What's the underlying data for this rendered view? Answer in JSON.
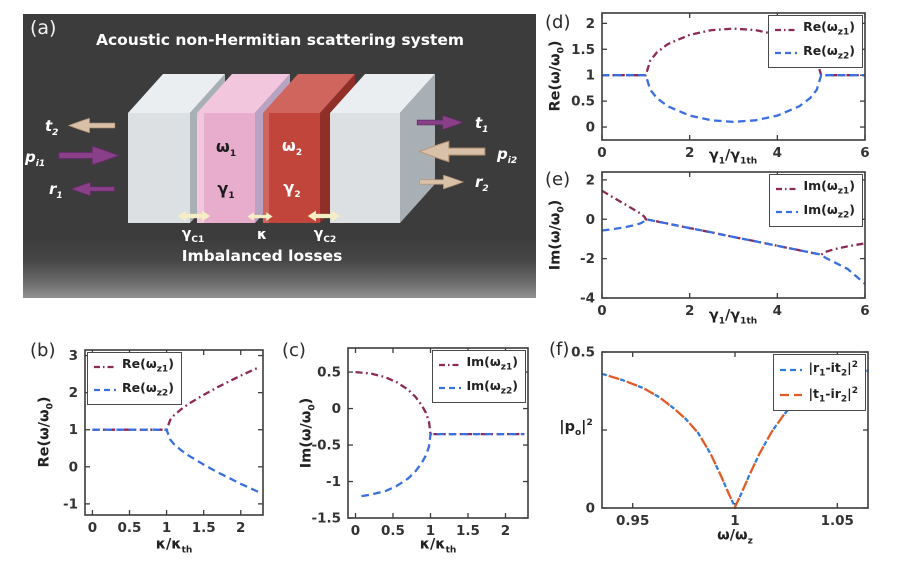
{
  "figure": {
    "panel_labels": {
      "a": "(a)",
      "b": "(b)",
      "c": "(c)",
      "d": "(d)",
      "e": "(e)",
      "f": "(f)"
    }
  },
  "panel_a": {
    "title": "Acoustic non-Hermitian scattering system",
    "bottom_text": "Imbalanced losses",
    "labels": {
      "t2": "t_{2}",
      "pi1": "p_{i1}",
      "r1": "r_{1}",
      "t1": "t_{1}",
      "pi2": "p_{i2}",
      "r2": "r_{2}",
      "omega1": "ω_{1}",
      "gamma1": "γ_{1}",
      "omega2": "ω_{2}",
      "gamma2": "γ_{2}",
      "gc1": "γ_{C1}",
      "kappa": "κ",
      "gc2": "γ_{C2}"
    },
    "colors": {
      "background": "#3b3b3b",
      "gray_front": "#dce0e3",
      "gray_top": "#ebeef0",
      "gray_side": "#a9b0b5",
      "pink_front": "#e8accd",
      "pink_top": "#f2c7de",
      "pink_side": "#b9a3c2",
      "red_front": "#c2453c",
      "red_top": "#cf655c",
      "red_side": "#8f2f28",
      "arrow_purple": "#8a4089",
      "arrow_purple_dark": "#5f2b62",
      "arrow_tan": "#d9c0a8",
      "arrow_tan_dark": "#b89877",
      "arrow_yellow": "#f5eec5"
    }
  },
  "chart_data": [
    {
      "panel": "b",
      "type": "line",
      "xlabel": "κ/κ_{th}",
      "ylabel": "Re(ω/ω_{0})",
      "xlim": [
        -0.1,
        2.3
      ],
      "ylim": [
        -1.3,
        3.15
      ],
      "xticks": [
        0,
        0.5,
        1,
        1.5,
        2
      ],
      "xticklabels": [
        "0",
        "0.5",
        "1",
        "1.5",
        "2"
      ],
      "yticks": [
        -1,
        0,
        1,
        2,
        3
      ],
      "yticklabels": [
        "-1",
        "0",
        "1",
        "2",
        "3"
      ],
      "grid": false,
      "legend": {
        "pos": "top-left"
      },
      "series": [
        {
          "name": "Re(ω_{z1})",
          "color": "#8c2a56",
          "dash": "dashdot",
          "points": [
            [
              0,
              1
            ],
            [
              0.3,
              1
            ],
            [
              0.6,
              1
            ],
            [
              0.9,
              1
            ],
            [
              1,
              1
            ],
            [
              1.05,
              1.27
            ],
            [
              1.1,
              1.39
            ],
            [
              1.2,
              1.56
            ],
            [
              1.3,
              1.7
            ],
            [
              1.4,
              1.82
            ],
            [
              1.5,
              1.94
            ],
            [
              1.6,
              2.05
            ],
            [
              1.7,
              2.16
            ],
            [
              1.8,
              2.26
            ],
            [
              1.9,
              2.36
            ],
            [
              2.0,
              2.46
            ],
            [
              2.1,
              2.55
            ],
            [
              2.25,
              2.69
            ]
          ]
        },
        {
          "name": "Re(ω_{z2})",
          "color": "#3a6fe0",
          "dash": "dash",
          "points": [
            [
              0,
              1
            ],
            [
              0.3,
              1
            ],
            [
              0.6,
              1
            ],
            [
              0.9,
              1
            ],
            [
              1,
              1
            ],
            [
              1.05,
              0.73
            ],
            [
              1.1,
              0.61
            ],
            [
              1.2,
              0.44
            ],
            [
              1.3,
              0.3
            ],
            [
              1.4,
              0.18
            ],
            [
              1.5,
              0.06
            ],
            [
              1.6,
              -0.05
            ],
            [
              1.7,
              -0.16
            ],
            [
              1.8,
              -0.26
            ],
            [
              1.9,
              -0.36
            ],
            [
              2.0,
              -0.46
            ],
            [
              2.1,
              -0.55
            ],
            [
              2.25,
              -0.69
            ]
          ]
        }
      ]
    },
    {
      "panel": "c",
      "type": "line",
      "xlabel": "κ/κ_{th}",
      "ylabel": "Im(ω/ω_{0})",
      "xlim": [
        -0.1,
        2.3
      ],
      "ylim": [
        -1.5,
        0.83
      ],
      "xticks": [
        0,
        0.5,
        1,
        1.5,
        2
      ],
      "xticklabels": [
        "0",
        "0.5",
        "1",
        "1.5",
        "2"
      ],
      "yticks": [
        -1.5,
        -1,
        -0.5,
        0,
        0.5
      ],
      "yticklabels": [
        "-1.5",
        "-1",
        "-0.5",
        "0",
        "0.5"
      ],
      "grid": false,
      "legend": {
        "pos": "top-right"
      },
      "series": [
        {
          "name": "Im(ω_{z1})",
          "color": "#8c2a56",
          "dash": "dashdot",
          "points": [
            [
              0,
              0.5
            ],
            [
              0.2,
              0.48
            ],
            [
              0.4,
              0.43
            ],
            [
              0.55,
              0.36
            ],
            [
              0.7,
              0.26
            ],
            [
              0.8,
              0.16
            ],
            [
              0.88,
              0.05
            ],
            [
              0.94,
              -0.06
            ],
            [
              0.98,
              -0.18
            ],
            [
              1,
              -0.35
            ],
            [
              1.2,
              -0.35
            ],
            [
              1.6,
              -0.35
            ],
            [
              2,
              -0.35
            ],
            [
              2.25,
              -0.35
            ]
          ]
        },
        {
          "name": "Im(ω_{z2})",
          "color": "#3a6fe0",
          "dash": "dash",
          "points": [
            [
              0.08,
              -1.2
            ],
            [
              0.2,
              -1.18
            ],
            [
              0.4,
              -1.13
            ],
            [
              0.55,
              -1.06
            ],
            [
              0.7,
              -0.96
            ],
            [
              0.8,
              -0.86
            ],
            [
              0.88,
              -0.75
            ],
            [
              0.94,
              -0.64
            ],
            [
              0.98,
              -0.52
            ],
            [
              1,
              -0.35
            ],
            [
              1.2,
              -0.35
            ],
            [
              1.6,
              -0.35
            ],
            [
              2,
              -0.35
            ],
            [
              2.25,
              -0.35
            ]
          ]
        }
      ]
    },
    {
      "panel": "d",
      "type": "line",
      "xlabel": "γ_{1}/γ_{1th}",
      "ylabel": "Re(ω/ω_{0})",
      "xlim": [
        0,
        6
      ],
      "ylim": [
        -0.25,
        2.2
      ],
      "xticks": [
        0,
        2,
        4,
        6
      ],
      "xticklabels": [
        "0",
        "2",
        "4",
        "6"
      ],
      "yticks": [
        0,
        0.5,
        1,
        1.5,
        2
      ],
      "yticklabels": [
        "0",
        "0.5",
        "1",
        "1.5",
        "2"
      ],
      "grid": false,
      "legend": {
        "pos": "top-right"
      },
      "series": [
        {
          "name": "Re(ω_{z1})",
          "color": "#8c2a56",
          "dash": "dashdot",
          "points": [
            [
              0,
              1
            ],
            [
              0.5,
              1
            ],
            [
              1,
              1
            ],
            [
              1.1,
              1.28
            ],
            [
              1.25,
              1.44
            ],
            [
              1.5,
              1.6
            ],
            [
              2,
              1.78
            ],
            [
              2.5,
              1.87
            ],
            [
              3,
              1.9
            ],
            [
              3.5,
              1.87
            ],
            [
              4,
              1.78
            ],
            [
              4.5,
              1.6
            ],
            [
              4.75,
              1.44
            ],
            [
              4.9,
              1.28
            ],
            [
              5,
              1
            ],
            [
              5.5,
              1
            ],
            [
              6,
              1
            ]
          ]
        },
        {
          "name": "Re(ω_{z2})",
          "color": "#3a6fe0",
          "dash": "dash",
          "points": [
            [
              0,
              1
            ],
            [
              0.5,
              1
            ],
            [
              1,
              1
            ],
            [
              1.1,
              0.72
            ],
            [
              1.25,
              0.56
            ],
            [
              1.5,
              0.4
            ],
            [
              2,
              0.22
            ],
            [
              2.5,
              0.13
            ],
            [
              3,
              0.1
            ],
            [
              3.5,
              0.13
            ],
            [
              4,
              0.22
            ],
            [
              4.5,
              0.4
            ],
            [
              4.75,
              0.56
            ],
            [
              4.9,
              0.72
            ],
            [
              5,
              1
            ],
            [
              5.5,
              1
            ],
            [
              6,
              1
            ]
          ]
        }
      ]
    },
    {
      "panel": "e",
      "type": "line",
      "xlabel": "γ_{1}/γ_{1th}",
      "ylabel": "Im(ω/ω_{0})",
      "xlim": [
        0,
        6
      ],
      "ylim": [
        -4,
        2.4
      ],
      "xticks": [
        0,
        2,
        4,
        6
      ],
      "xticklabels": [
        "0",
        "2",
        "4",
        "6"
      ],
      "yticks": [
        -4,
        -2,
        0,
        2
      ],
      "yticklabels": [
        "-4",
        "-2",
        "0",
        "2"
      ],
      "grid": false,
      "legend": {
        "pos": "top-right"
      },
      "series": [
        {
          "name": "Im(ω_{z1})",
          "color": "#8c2a56",
          "dash": "dashdot",
          "points": [
            [
              0,
              1.45
            ],
            [
              0.2,
              1.18
            ],
            [
              0.4,
              0.92
            ],
            [
              0.6,
              0.66
            ],
            [
              0.8,
              0.4
            ],
            [
              0.9,
              0.26
            ],
            [
              0.97,
              0.12
            ],
            [
              1,
              0
            ],
            [
              1.5,
              -0.22
            ],
            [
              2,
              -0.45
            ],
            [
              2.5,
              -0.67
            ],
            [
              3,
              -0.9
            ],
            [
              3.5,
              -1.12
            ],
            [
              4,
              -1.35
            ],
            [
              4.5,
              -1.57
            ],
            [
              5,
              -1.8
            ],
            [
              5.1,
              -1.66
            ],
            [
              5.3,
              -1.52
            ],
            [
              5.6,
              -1.38
            ],
            [
              6,
              -1.22
            ]
          ]
        },
        {
          "name": "Im(ω_{z2})",
          "color": "#3a6fe0",
          "dash": "dash",
          "points": [
            [
              0,
              -0.57
            ],
            [
              0.2,
              -0.52
            ],
            [
              0.4,
              -0.45
            ],
            [
              0.6,
              -0.37
            ],
            [
              0.8,
              -0.27
            ],
            [
              0.9,
              -0.19
            ],
            [
              0.97,
              -0.09
            ],
            [
              1,
              0
            ],
            [
              1.5,
              -0.22
            ],
            [
              2,
              -0.45
            ],
            [
              2.5,
              -0.67
            ],
            [
              3,
              -0.9
            ],
            [
              3.5,
              -1.12
            ],
            [
              4,
              -1.35
            ],
            [
              4.5,
              -1.57
            ],
            [
              5,
              -1.8
            ],
            [
              5.1,
              -1.96
            ],
            [
              5.3,
              -2.18
            ],
            [
              5.6,
              -2.52
            ],
            [
              6,
              -3.28
            ]
          ]
        }
      ]
    },
    {
      "panel": "f",
      "type": "line",
      "xlabel": "ω/ω_{z}",
      "ylabel": "|p_{o}|^{2}",
      "xlim": [
        0.935,
        1.065
      ],
      "ylim": [
        0,
        0.5
      ],
      "xticks": [
        0.95,
        1,
        1.05
      ],
      "xticklabels": [
        "0.95",
        "1",
        "1.05"
      ],
      "yticks": [
        0,
        0.25,
        0.5
      ],
      "yticklabels": [
        "0",
        "",
        "0.5"
      ],
      "grid": false,
      "legend": {
        "pos": "top-right"
      },
      "series": [
        {
          "name": "|r_{1}-it_{2}|^{2}",
          "color": "#2f7cd9",
          "dash": "custom",
          "dasharray": "5 14",
          "dashoffset": 0,
          "sample_dash": "6 4",
          "points": [
            [
              0.935,
              0.43
            ],
            [
              0.945,
              0.41
            ],
            [
              0.955,
              0.385
            ],
            [
              0.963,
              0.355
            ],
            [
              0.97,
              0.32
            ],
            [
              0.976,
              0.285
            ],
            [
              0.982,
              0.24
            ],
            [
              0.988,
              0.175
            ],
            [
              0.993,
              0.105
            ],
            [
              0.997,
              0.045
            ],
            [
              1.0,
              0.003
            ],
            [
              1.003,
              0.045
            ],
            [
              1.007,
              0.105
            ],
            [
              1.012,
              0.175
            ],
            [
              1.018,
              0.245
            ],
            [
              1.024,
              0.3
            ],
            [
              1.03,
              0.345
            ],
            [
              1.038,
              0.385
            ],
            [
              1.048,
              0.415
            ],
            [
              1.058,
              0.435
            ],
            [
              1.065,
              0.44
            ]
          ]
        },
        {
          "name": "|t_{1}-ir_{2}|^{2}",
          "color": "#e05b28",
          "dash": "custom",
          "dasharray": "11 8",
          "dashoffset": -7,
          "sample_dash": "9 5",
          "points": [
            [
              0.935,
              0.43
            ],
            [
              0.945,
              0.41
            ],
            [
              0.955,
              0.385
            ],
            [
              0.963,
              0.355
            ],
            [
              0.97,
              0.32
            ],
            [
              0.976,
              0.285
            ],
            [
              0.982,
              0.24
            ],
            [
              0.988,
              0.175
            ],
            [
              0.993,
              0.105
            ],
            [
              0.997,
              0.045
            ],
            [
              1.0,
              0.003
            ],
            [
              1.003,
              0.045
            ],
            [
              1.007,
              0.105
            ],
            [
              1.012,
              0.175
            ],
            [
              1.018,
              0.245
            ],
            [
              1.024,
              0.3
            ],
            [
              1.03,
              0.345
            ],
            [
              1.038,
              0.385
            ],
            [
              1.048,
              0.415
            ],
            [
              1.058,
              0.435
            ],
            [
              1.065,
              0.44
            ]
          ]
        }
      ]
    }
  ]
}
